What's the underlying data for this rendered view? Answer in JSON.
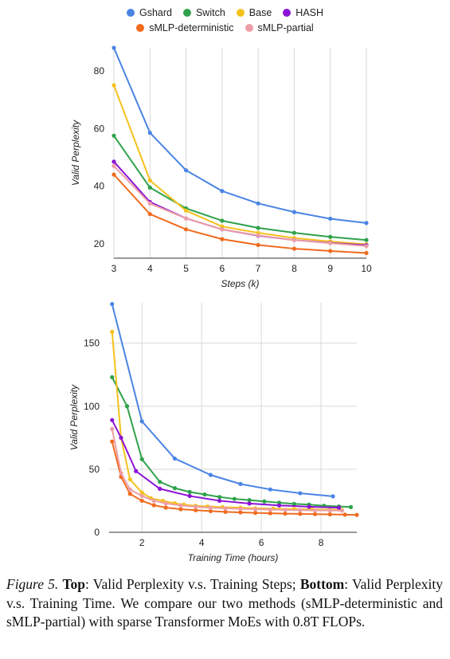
{
  "legend": {
    "row1": [
      {
        "name": "Gshard",
        "color": "#4a84e5"
      },
      {
        "name": "Switch",
        "color": "#2ea24a"
      },
      {
        "name": "Base",
        "color": "#f5c11d"
      },
      {
        "name": "HASH",
        "color": "#8b13d6"
      }
    ],
    "row2": [
      {
        "name": "sMLP-deterministic",
        "color": "#f06b1e"
      },
      {
        "name": "sMLP-partial",
        "color": "#ec9ea6"
      }
    ]
  },
  "caption": {
    "figure_label": "Figure 5.",
    "top_label": "Top",
    "top_text": ": Valid Perplexity v.s. Training Steps; ",
    "bottom_label": "Bottom",
    "bottom_text": ": Valid Perplexity v.s. Training Time. We compare our two methods (sMLP-deterministic and sMLP-partial) with sparse Transformer MoEs with 0.8T FLOPs."
  },
  "chart_data": [
    {
      "type": "line",
      "xlabel": "Steps (k)",
      "ylabel": "Valid Perplexity",
      "xlim": [
        3,
        10
      ],
      "ylim": [
        15,
        88
      ],
      "xticks": [
        3,
        4,
        5,
        6,
        7,
        8,
        9,
        10
      ],
      "yticks": [
        20,
        40,
        60,
        80
      ],
      "grid": "vertical",
      "x": [
        3,
        4,
        5,
        6,
        7,
        8,
        9,
        10
      ],
      "series": [
        {
          "name": "Gshard",
          "color": "#4a84e5",
          "values": [
            88,
            58.5,
            45.5,
            38.3,
            34,
            31,
            28.7,
            27.2
          ]
        },
        {
          "name": "Switch",
          "color": "#2ea24a",
          "values": [
            57.5,
            39.5,
            32.3,
            28,
            25.5,
            23.8,
            22.4,
            21.3
          ]
        },
        {
          "name": "Base",
          "color": "#f5c11d",
          "values": [
            75,
            42,
            31.5,
            26,
            23.8,
            22,
            20.8,
            19.8
          ]
        },
        {
          "name": "HASH",
          "color": "#8b13d6",
          "values": [
            48.5,
            34.5,
            28.8,
            25,
            22.8,
            21.3,
            20.3,
            19.5
          ]
        },
        {
          "name": "sMLP-deterministic",
          "color": "#f06b1e",
          "values": [
            44,
            30.3,
            25,
            21.6,
            19.6,
            18.3,
            17.5,
            16.8
          ]
        },
        {
          "name": "sMLP-partial",
          "color": "#ec9ea6",
          "values": [
            47,
            34,
            28.8,
            25,
            22.9,
            21.3,
            20.2,
            19.2
          ]
        }
      ]
    },
    {
      "type": "line",
      "xlabel": "Training Time (hours)",
      "ylabel": "Valid Perplexity",
      "xlim": [
        0.9,
        9.2
      ],
      "ylim": [
        0,
        182
      ],
      "xticks": [
        2,
        4,
        6,
        8
      ],
      "yticks": [
        0,
        50,
        100,
        150
      ],
      "grid": "both",
      "series": [
        {
          "name": "Gshard",
          "color": "#4a84e5",
          "x": [
            1.0,
            2.0,
            3.1,
            4.3,
            5.3,
            6.3,
            7.3,
            8.4
          ],
          "values": [
            181,
            88,
            58.5,
            45.5,
            38.3,
            34,
            31,
            28.5
          ]
        },
        {
          "name": "Switch",
          "color": "#2ea24a",
          "x": [
            1.0,
            1.5,
            2.0,
            2.6,
            3.1,
            3.6,
            4.1,
            4.6,
            5.1,
            5.6,
            6.1,
            6.6,
            7.1,
            7.6,
            8.1,
            8.6,
            9.0
          ],
          "values": [
            123,
            100,
            58,
            40,
            35,
            32,
            30,
            28,
            26.5,
            25.5,
            24.5,
            23.5,
            22.5,
            22,
            21,
            20.5,
            20
          ]
        },
        {
          "name": "Base",
          "color": "#f5c11d",
          "x": [
            1.0,
            1.3,
            1.6,
            2.0,
            2.3,
            2.7,
            3.1,
            3.4,
            3.8,
            4.2,
            4.7,
            5.3,
            5.8,
            6.4,
            7.1,
            7.7,
            8.3,
            8.7
          ],
          "values": [
            159,
            75,
            42,
            31.5,
            27,
            25,
            23,
            22,
            21,
            20.5,
            20,
            19.5,
            19,
            18.8,
            18.5,
            18.2,
            18,
            17.8
          ]
        },
        {
          "name": "HASH",
          "color": "#8b13d6",
          "x": [
            1.0,
            1.3,
            1.8,
            2.6,
            3.6,
            4.6,
            5.6,
            6.6,
            7.6,
            8.6
          ],
          "values": [
            89,
            75,
            48.5,
            34.5,
            28.8,
            25,
            22.8,
            21.3,
            20.3,
            19.5
          ]
        },
        {
          "name": "sMLP-deterministic",
          "color": "#f06b1e",
          "x": [
            1.0,
            1.3,
            1.6,
            2.0,
            2.4,
            2.8,
            3.3,
            3.8,
            4.3,
            4.8,
            5.3,
            5.8,
            6.3,
            6.8,
            7.3,
            7.8,
            8.3,
            8.8,
            9.2
          ],
          "values": [
            72,
            44,
            30.5,
            25,
            21.5,
            19.6,
            18.3,
            17.5,
            16.8,
            16.2,
            15.8,
            15.4,
            15.1,
            14.8,
            14.6,
            14.4,
            14.2,
            14,
            13.8
          ]
        },
        {
          "name": "sMLP-partial",
          "color": "#ec9ea6",
          "x": [
            1.0,
            1.3,
            1.6,
            2.0,
            2.4,
            2.8,
            3.3,
            3.8,
            4.3,
            4.8,
            5.3,
            5.8,
            6.3,
            6.8,
            7.3,
            7.8,
            8.3,
            8.7
          ],
          "values": [
            82,
            47,
            34,
            28.8,
            25,
            22.9,
            21.3,
            20.2,
            19.5,
            19,
            18.6,
            18.3,
            18,
            17.8,
            17.6,
            17.4,
            17.3,
            17.2
          ]
        }
      ]
    }
  ]
}
